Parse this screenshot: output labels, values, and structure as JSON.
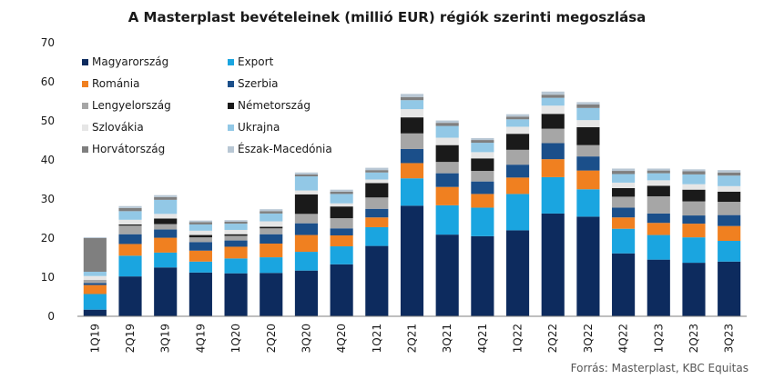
{
  "chart_data": {
    "type": "bar",
    "stacked": true,
    "title": "A Masterplast bevételeinek  (millió EUR) régiók szerinti megoszlása",
    "source": "Forrás: Masterplast, KBC Equitas",
    "xlabel": "",
    "ylabel": "",
    "ylim": [
      0,
      70
    ],
    "yticks": [
      "0",
      "10",
      "20",
      "30",
      "40",
      "50",
      "60",
      "70"
    ],
    "grid": false,
    "legend_position": "top-left",
    "categories": [
      "1Q19",
      "2Q19",
      "3Q19",
      "4Q19",
      "1Q20",
      "2Q20",
      "3Q20",
      "4Q20",
      "1Q21",
      "2Q21",
      "3Q21",
      "4Q21",
      "1Q22",
      "2Q22",
      "3Q22",
      "4Q22",
      "1Q23",
      "2Q23",
      "3Q23"
    ],
    "series": [
      {
        "name": "Magyarország",
        "color": "#0d2b5e",
        "values": [
          1.7,
          10.2,
          12.5,
          11.2,
          11.0,
          11.1,
          11.7,
          13.3,
          18.0,
          28.3,
          20.9,
          20.5,
          22.0,
          26.3,
          25.5,
          16.1,
          14.5,
          13.7,
          14.0
        ]
      },
      {
        "name": "Export",
        "color": "#1aa5e0",
        "values": [
          4.0,
          5.3,
          3.8,
          2.8,
          3.8,
          4.0,
          4.8,
          4.6,
          4.8,
          7.0,
          7.5,
          7.3,
          9.3,
          9.3,
          7.0,
          6.3,
          6.3,
          6.5,
          5.3
        ]
      },
      {
        "name": "Románia",
        "color": "#f08020",
        "values": [
          2.3,
          3.0,
          3.8,
          2.8,
          3.0,
          3.5,
          4.3,
          2.8,
          2.5,
          3.9,
          4.7,
          3.5,
          4.2,
          4.6,
          4.8,
          2.9,
          3.1,
          3.5,
          3.8
        ]
      },
      {
        "name": "Szerbia",
        "color": "#1b4f8a",
        "values": [
          0.5,
          2.5,
          2.1,
          2.2,
          1.6,
          2.4,
          3.0,
          1.8,
          2.2,
          3.6,
          3.5,
          3.2,
          3.3,
          4.1,
          3.6,
          2.5,
          2.4,
          2.1,
          2.8
        ]
      },
      {
        "name": "Lengyelország",
        "color": "#a6a6a6",
        "values": [
          0.8,
          2.2,
          1.4,
          1.2,
          1.2,
          1.5,
          2.4,
          2.6,
          2.9,
          4.0,
          2.9,
          2.7,
          3.8,
          3.7,
          2.9,
          2.8,
          4.4,
          3.6,
          3.4
        ]
      },
      {
        "name": "Németország",
        "color": "#1a1a1a",
        "values": [
          0.0,
          0.3,
          1.4,
          0.6,
          0.4,
          0.4,
          5.0,
          3.0,
          3.7,
          4.1,
          4.3,
          3.2,
          4.1,
          3.8,
          4.6,
          2.2,
          2.7,
          3.0,
          2.6
        ]
      },
      {
        "name": "Szlovákia",
        "color": "#e6e6e6",
        "values": [
          1.0,
          1.2,
          1.2,
          1.1,
          1.1,
          1.4,
          1.0,
          0.8,
          0.9,
          2.1,
          1.9,
          1.6,
          1.8,
          2.1,
          1.8,
          1.4,
          1.4,
          1.4,
          1.4
        ]
      },
      {
        "name": "Ukrajna",
        "color": "#92c8e6",
        "values": [
          1.1,
          2.2,
          3.6,
          1.6,
          1.6,
          2.0,
          3.6,
          2.4,
          1.8,
          2.3,
          3.0,
          2.4,
          1.9,
          2.0,
          3.1,
          2.2,
          1.8,
          2.5,
          2.7
        ]
      },
      {
        "name": "Horvátország",
        "color": "#7f7f7f",
        "values": [
          8.6,
          0.8,
          0.7,
          0.6,
          0.5,
          0.6,
          0.5,
          0.6,
          0.6,
          0.8,
          0.8,
          0.7,
          0.7,
          0.8,
          0.9,
          0.8,
          0.7,
          0.8,
          0.8
        ]
      },
      {
        "name": "Észak-Macedónia",
        "color": "#b8c7d4",
        "values": [
          0.2,
          0.5,
          0.5,
          0.4,
          0.4,
          0.5,
          0.5,
          0.5,
          0.6,
          0.8,
          0.6,
          0.5,
          0.6,
          0.8,
          0.6,
          0.6,
          0.5,
          0.5,
          0.6
        ]
      }
    ]
  }
}
